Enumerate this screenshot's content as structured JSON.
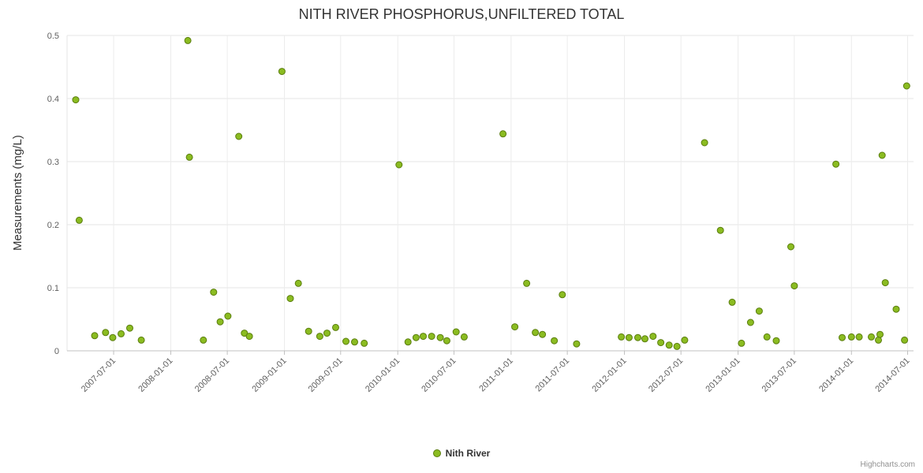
{
  "title": "NITH RIVER PHOSPHORUS,UNFILTERED TOTAL",
  "credits": "Highcharts.com",
  "legend": {
    "label": "Nith River"
  },
  "colors": {
    "point_fill": "#8bbc21",
    "point_stroke": "#5a7d0e",
    "grid": "#e6e6e6",
    "grid_vertical": "#ececec",
    "axis_line": "#c0c0c0",
    "axis_text": "#606060",
    "title_text": "#333333"
  },
  "chart_data": {
    "type": "scatter",
    "title": "NITH RIVER PHOSPHORUS,UNFILTERED TOTAL",
    "xlabel": "",
    "ylabel": "Measurements (mg/L)",
    "ylim": [
      0,
      0.5
    ],
    "yticks": [
      0,
      0.1,
      0.2,
      0.3,
      0.4,
      0.5
    ],
    "x_range": [
      "2007-02-01",
      "2014-07-20"
    ],
    "xticks": [
      "2007-07-01",
      "2008-01-01",
      "2008-07-01",
      "2009-01-01",
      "2009-07-01",
      "2010-01-01",
      "2010-07-01",
      "2011-01-01",
      "2011-07-01",
      "2012-01-01",
      "2012-07-01",
      "2013-01-01",
      "2013-07-01",
      "2014-01-01",
      "2014-07-01"
    ],
    "legend_position": "bottom-center",
    "grid": true,
    "series": [
      {
        "name": "Nith River",
        "points": [
          [
            "2007-03-01",
            0.398
          ],
          [
            "2007-03-12",
            0.207
          ],
          [
            "2007-05-01",
            0.024
          ],
          [
            "2007-06-05",
            0.029
          ],
          [
            "2007-06-28",
            0.021
          ],
          [
            "2007-07-25",
            0.027
          ],
          [
            "2007-08-22",
            0.036
          ],
          [
            "2007-09-28",
            0.017
          ],
          [
            "2008-02-25",
            0.492
          ],
          [
            "2008-03-01",
            0.307
          ],
          [
            "2008-04-15",
            0.017
          ],
          [
            "2008-05-18",
            0.093
          ],
          [
            "2008-06-08",
            0.046
          ],
          [
            "2008-07-03",
            0.055
          ],
          [
            "2008-08-07",
            0.34
          ],
          [
            "2008-08-25",
            0.028
          ],
          [
            "2008-09-10",
            0.023
          ],
          [
            "2008-12-24",
            0.443
          ],
          [
            "2009-01-20",
            0.083
          ],
          [
            "2009-02-15",
            0.107
          ],
          [
            "2009-03-20",
            0.031
          ],
          [
            "2009-04-25",
            0.023
          ],
          [
            "2009-05-18",
            0.028
          ],
          [
            "2009-06-15",
            0.037
          ],
          [
            "2009-07-18",
            0.015
          ],
          [
            "2009-08-15",
            0.014
          ],
          [
            "2009-09-15",
            0.012
          ],
          [
            "2010-01-05",
            0.295
          ],
          [
            "2010-02-03",
            0.014
          ],
          [
            "2010-03-01",
            0.021
          ],
          [
            "2010-03-24",
            0.023
          ],
          [
            "2010-04-20",
            0.023
          ],
          [
            "2010-05-18",
            0.021
          ],
          [
            "2010-06-08",
            0.016
          ],
          [
            "2010-07-08",
            0.03
          ],
          [
            "2010-08-03",
            0.022
          ],
          [
            "2010-12-06",
            0.344
          ],
          [
            "2011-01-13",
            0.038
          ],
          [
            "2011-02-20",
            0.107
          ],
          [
            "2011-03-20",
            0.029
          ],
          [
            "2011-04-12",
            0.026
          ],
          [
            "2011-05-20",
            0.016
          ],
          [
            "2011-06-15",
            0.089
          ],
          [
            "2011-07-31",
            0.011
          ],
          [
            "2011-12-22",
            0.022
          ],
          [
            "2012-01-16",
            0.021
          ],
          [
            "2012-02-13",
            0.021
          ],
          [
            "2012-03-07",
            0.019
          ],
          [
            "2012-04-02",
            0.023
          ],
          [
            "2012-04-27",
            0.013
          ],
          [
            "2012-05-24",
            0.009
          ],
          [
            "2012-06-18",
            0.007
          ],
          [
            "2012-07-13",
            0.017
          ],
          [
            "2012-09-15",
            0.33
          ],
          [
            "2012-11-05",
            0.191
          ],
          [
            "2012-12-13",
            0.077
          ],
          [
            "2013-01-12",
            0.012
          ],
          [
            "2013-02-10",
            0.045
          ],
          [
            "2013-03-10",
            0.063
          ],
          [
            "2013-04-04",
            0.022
          ],
          [
            "2013-05-04",
            0.016
          ],
          [
            "2013-06-20",
            0.165
          ],
          [
            "2013-07-01",
            0.103
          ],
          [
            "2013-11-12",
            0.296
          ],
          [
            "2013-12-02",
            0.021
          ],
          [
            "2014-01-01",
            0.022
          ],
          [
            "2014-01-26",
            0.022
          ],
          [
            "2014-03-06",
            0.022
          ],
          [
            "2014-03-29",
            0.017
          ],
          [
            "2014-04-03",
            0.026
          ],
          [
            "2014-04-10",
            0.31
          ],
          [
            "2014-04-20",
            0.108
          ],
          [
            "2014-05-25",
            0.066
          ],
          [
            "2014-06-21",
            0.017
          ],
          [
            "2014-06-28",
            0.42
          ]
        ]
      }
    ]
  }
}
